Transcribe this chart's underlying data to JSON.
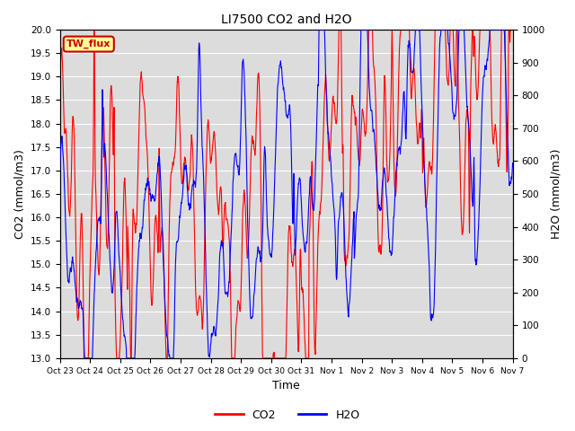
{
  "title": "LI7500 CO2 and H2O",
  "xlabel": "Time",
  "ylabel_left": "CO2 (mmol/m3)",
  "ylabel_right": "H2O (mmol/m3)",
  "co2_ylim": [
    13.0,
    20.0
  ],
  "h2o_ylim": [
    0,
    1000
  ],
  "co2_yticks": [
    13.0,
    13.5,
    14.0,
    14.5,
    15.0,
    15.5,
    16.0,
    16.5,
    17.0,
    17.5,
    18.0,
    18.5,
    19.0,
    19.5,
    20.0
  ],
  "h2o_yticks": [
    0,
    100,
    200,
    300,
    400,
    500,
    600,
    700,
    800,
    900,
    1000
  ],
  "xtick_labels": [
    "Oct 23",
    "Oct 24",
    "Oct 25",
    "Oct 26",
    "Oct 27",
    "Oct 28",
    "Oct 29",
    "Oct 30",
    "Oct 31",
    "Nov 1",
    "Nov 2",
    "Nov 3",
    "Nov 4",
    "Nov 5",
    "Nov 6",
    "Nov 7"
  ],
  "annotation_text": "TW_flux",
  "annotation_color": "#cc0000",
  "annotation_bg": "#ffff99",
  "co2_color": "red",
  "h2o_color": "blue",
  "background_color": "#dcdcdc",
  "legend_co2": "CO2",
  "legend_h2o": "H2O",
  "figsize": [
    6.4,
    4.8
  ],
  "dpi": 100
}
